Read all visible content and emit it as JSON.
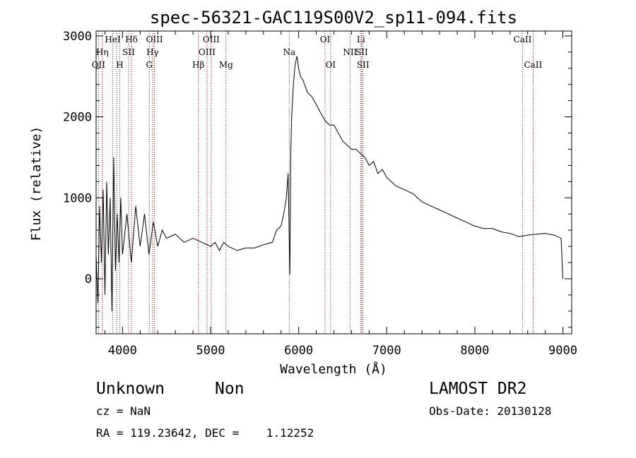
{
  "chart_data": {
    "type": "line",
    "title": "spec-56321-GAC119S00V2_sp11-094.fits",
    "xlabel": "Wavelength (Å)",
    "ylabel": "Flux (relative)",
    "xlim": [
      3700,
      9100
    ],
    "ylim": [
      -680,
      3060
    ],
    "xticks": [
      4000,
      5000,
      6000,
      7000,
      8000,
      9000
    ],
    "yticks": [
      0,
      1000,
      2000,
      3000
    ],
    "grid": false,
    "series": [
      {
        "x": [
          3700,
          3720,
          3740,
          3760,
          3780,
          3800,
          3820,
          3840,
          3860,
          3880,
          3900,
          3920,
          3940,
          3960,
          3980,
          4000,
          4050,
          4100,
          4150,
          4200,
          4250,
          4300,
          4350,
          4400,
          4450,
          4500,
          4600,
          4700,
          4800,
          4900,
          5000,
          5050,
          5100,
          5150,
          5200,
          5300,
          5400,
          5500,
          5600,
          5700,
          5750,
          5800,
          5830,
          5860,
          5880,
          5900,
          5910,
          5920,
          5940,
          5960,
          5980,
          6000,
          6020,
          6050,
          6100,
          6150,
          6200,
          6250,
          6300,
          6350,
          6400,
          6450,
          6500,
          6550,
          6600,
          6650,
          6700,
          6750,
          6800,
          6850,
          6900,
          6950,
          7000,
          7100,
          7200,
          7300,
          7400,
          7500,
          7600,
          7700,
          7800,
          7900,
          8000,
          8100,
          8200,
          8300,
          8400,
          8500,
          8600,
          8700,
          8800,
          8900,
          8980,
          9000
        ],
        "y": [
          300,
          -300,
          900,
          200,
          1100,
          -200,
          1200,
          300,
          1000,
          -400,
          1500,
          100,
          800,
          200,
          1000,
          300,
          800,
          200,
          900,
          400,
          800,
          300,
          700,
          400,
          600,
          500,
          550,
          450,
          500,
          450,
          400,
          450,
          350,
          450,
          400,
          350,
          380,
          380,
          420,
          450,
          600,
          650,
          800,
          1000,
          1300,
          50,
          1500,
          2000,
          2400,
          2650,
          2750,
          2600,
          2500,
          2450,
          2300,
          2250,
          2150,
          2050,
          1950,
          1900,
          1900,
          1800,
          1700,
          1650,
          1600,
          1600,
          1550,
          1500,
          1400,
          1450,
          1300,
          1350,
          1250,
          1150,
          1100,
          1050,
          950,
          900,
          850,
          800,
          750,
          700,
          650,
          620,
          620,
          580,
          560,
          520,
          540,
          550,
          560,
          540,
          500,
          0
        ]
      }
    ],
    "line_markers": [
      {
        "wavelength": 3727,
        "label": "OII",
        "row": 3
      },
      {
        "wavelength": 3770,
        "label": "Hη",
        "row": 2
      },
      {
        "wavelength": 3889,
        "label": "HeI",
        "row": 1
      },
      {
        "wavelength": 3934,
        "label": "",
        "row": 0
      },
      {
        "wavelength": 3969,
        "label": "H",
        "row": 3
      },
      {
        "wavelength": 4069,
        "label": "SII",
        "row": 2
      },
      {
        "wavelength": 4102,
        "label": "Hδ",
        "row": 1
      },
      {
        "wavelength": 4304,
        "label": "G",
        "row": 3
      },
      {
        "wavelength": 4341,
        "label": "Hγ",
        "row": 2
      },
      {
        "wavelength": 4363,
        "label": "OIII",
        "row": 1
      },
      {
        "wavelength": 4861,
        "label": "Hβ",
        "row": 3
      },
      {
        "wavelength": 4959,
        "label": "OIII",
        "row": 2
      },
      {
        "wavelength": 5007,
        "label": "OIII",
        "row": 1
      },
      {
        "wavelength": 5175,
        "label": "Mg",
        "row": 3
      },
      {
        "wavelength": 5893,
        "label": "Na",
        "row": 2
      },
      {
        "wavelength": 6300,
        "label": "OI",
        "row": 1
      },
      {
        "wavelength": 6363,
        "label": "OI",
        "row": 3
      },
      {
        "wavelength": 6583,
        "label": "NII",
        "row": 2
      },
      {
        "wavelength": 6707,
        "label": "Li",
        "row": 1
      },
      {
        "wavelength": 6716,
        "label": "SII",
        "row": 2
      },
      {
        "wavelength": 6731,
        "label": "SII",
        "row": 3
      },
      {
        "wavelength": 8542,
        "label": "CaII",
        "row": 1
      },
      {
        "wavelength": 8662,
        "label": "CaII",
        "row": 3
      }
    ]
  },
  "info": {
    "classification": "Unknown",
    "subclass": "Non",
    "survey": "LAMOST DR2",
    "cz_line": "cz = NaN",
    "obs_date_line": "Obs-Date: 20130128",
    "coords_line": "RA = 119.23642, DEC =    1.12252"
  },
  "colors": {
    "axes": "#000000",
    "spectrum": "#000000",
    "marker_lines": "#8b0000"
  }
}
